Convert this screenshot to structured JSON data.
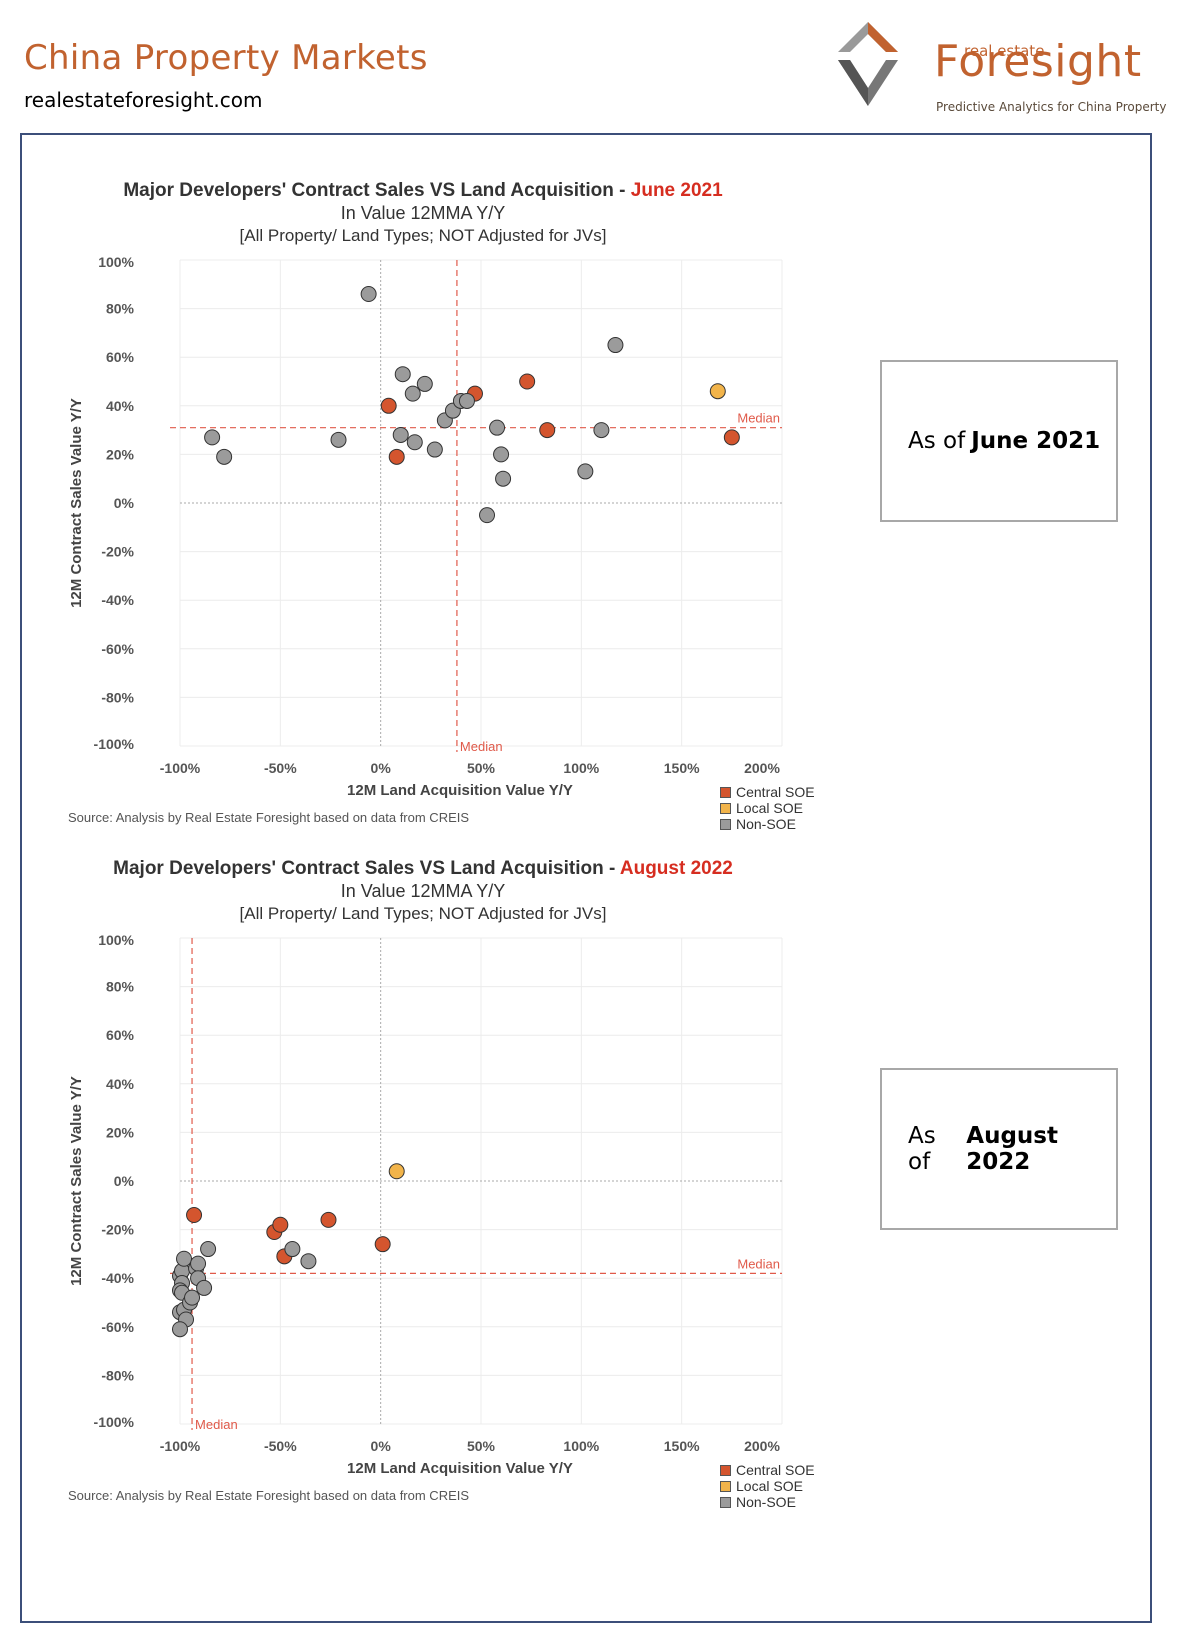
{
  "header": {
    "title": "China Property Markets",
    "url": "realestateforesight.com"
  },
  "logo": {
    "small": "real estate",
    "big": "Foresight",
    "tagline": "Predictive Analytics for China Property"
  },
  "colors": {
    "accent": "#c1622f",
    "central_soe": "#d4552e",
    "local_soe": "#f2b44a",
    "non_soe": "#9b9b9b",
    "median": "#e05a4a"
  },
  "legend": [
    "Central SOE",
    "Local SOE",
    "Non-SOE"
  ],
  "source_note": "Source: Analysis by Real Estate Foresight based on data from CREIS",
  "notes": [
    {
      "prefix": "As of",
      "bold": "June 2021"
    },
    {
      "prefix": "As of",
      "bold": "August 2022"
    }
  ],
  "chart_data": [
    {
      "type": "scatter",
      "title": "Major Developers' Contract Sales VS Land Acquisition - ",
      "title_highlight": "June 2021",
      "subtitle": "In Value 12MMA Y/Y",
      "subtitle2": "[All Property/ Land Types; NOT Adjusted for JVs]",
      "xlabel": "12M Land Acquisition Value Y/Y",
      "ylabel": "12M Contract Sales Value Y/Y",
      "xlim": [
        -100,
        200
      ],
      "ylim": [
        -100,
        100
      ],
      "x_ticks": [
        "-100%",
        "-50%",
        "0%",
        "50%",
        "100%",
        "150%",
        "200%"
      ],
      "y_ticks": [
        "100%",
        "80%",
        "60%",
        "40%",
        "20%",
        "0%",
        "-20%",
        "-40%",
        "-60%",
        "-80%",
        "-100%"
      ],
      "median_label": "Median",
      "median_x": 38,
      "median_y": 31,
      "series": [
        {
          "name": "Central SOE",
          "points": [
            [
              4,
              40
            ],
            [
              8,
              19
            ],
            [
              47,
              45
            ],
            [
              73,
              50
            ],
            [
              83,
              30
            ],
            [
              175,
              27
            ]
          ]
        },
        {
          "name": "Local SOE",
          "points": [
            [
              168,
              46
            ]
          ]
        },
        {
          "name": "Non-SOE",
          "points": [
            [
              -84,
              27
            ],
            [
              -78,
              19
            ],
            [
              -21,
              26
            ],
            [
              -6,
              86
            ],
            [
              10,
              28
            ],
            [
              11,
              53
            ],
            [
              16,
              45
            ],
            [
              17,
              25
            ],
            [
              22,
              49
            ],
            [
              27,
              22
            ],
            [
              32,
              34
            ],
            [
              36,
              38
            ],
            [
              40,
              42
            ],
            [
              43,
              42
            ],
            [
              53,
              -5
            ],
            [
              58,
              31
            ],
            [
              60,
              20
            ],
            [
              61,
              10
            ],
            [
              102,
              13
            ],
            [
              110,
              30
            ],
            [
              117,
              65
            ]
          ]
        }
      ]
    },
    {
      "type": "scatter",
      "title": "Major Developers' Contract Sales VS Land Acquisition - ",
      "title_highlight": "August 2022",
      "subtitle": "In Value 12MMA Y/Y",
      "subtitle2": "[All Property/ Land Types; NOT Adjusted for JVs]",
      "xlabel": "12M Land Acquisition Value Y/Y",
      "ylabel": "12M Contract Sales Value Y/Y",
      "xlim": [
        -100,
        200
      ],
      "ylim": [
        -100,
        100
      ],
      "x_ticks": [
        "-100%",
        "-50%",
        "0%",
        "50%",
        "100%",
        "150%",
        "200%"
      ],
      "y_ticks": [
        "100%",
        "80%",
        "60%",
        "40%",
        "20%",
        "0%",
        "-20%",
        "-40%",
        "-60%",
        "-80%",
        "-100%"
      ],
      "median_label": "Median",
      "median_x": -94,
      "median_y": -38,
      "series": [
        {
          "name": "Central SOE",
          "points": [
            [
              -93,
              -14
            ],
            [
              -53,
              -21
            ],
            [
              -50,
              -18
            ],
            [
              -48,
              -31
            ],
            [
              -26,
              -16
            ],
            [
              1,
              -26
            ]
          ]
        },
        {
          "name": "Local SOE",
          "points": [
            [
              8,
              4
            ]
          ]
        },
        {
          "name": "Non-SOE",
          "points": [
            [
              -100,
              -39
            ],
            [
              -99,
              -37
            ],
            [
              -98,
              -32
            ],
            [
              -99,
              -42
            ],
            [
              -100,
              -45
            ],
            [
              -99,
              -46
            ],
            [
              -100,
              -54
            ],
            [
              -98,
              -53
            ],
            [
              -97,
              -57
            ],
            [
              -100,
              -61
            ],
            [
              -95,
              -50
            ],
            [
              -94,
              -48
            ],
            [
              -92,
              -36
            ],
            [
              -91,
              -34
            ],
            [
              -91,
              -40
            ],
            [
              -88,
              -44
            ],
            [
              -86,
              -28
            ],
            [
              -44,
              -28
            ],
            [
              -36,
              -33
            ]
          ]
        }
      ]
    }
  ]
}
